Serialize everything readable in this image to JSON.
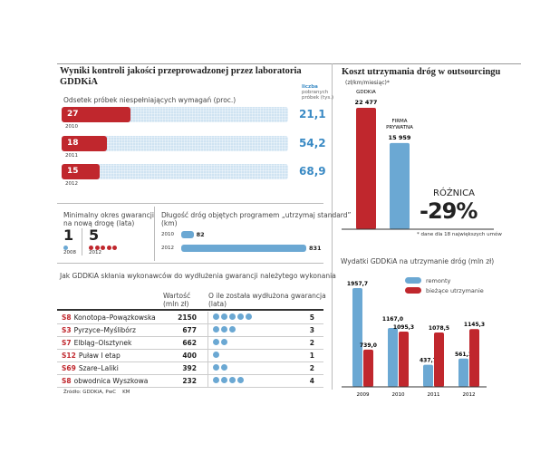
{
  "colors": {
    "red": "#c0272d",
    "blue": "#6ba8d3",
    "light_blue": "#cfe3f2"
  },
  "quality": {
    "title": "Wyniki kontroli jakości przeprowadzonej przez laboratoria GDDKiA",
    "left_label": "Odsetek próbek niespełniających wymagań (proc.)",
    "right_label_1": "liczba",
    "right_label_2": "pobranych",
    "right_label_3": "próbek (tys.)",
    "rows": [
      {
        "year": "2010",
        "percent": "27",
        "samples": "21,1"
      },
      {
        "year": "2011",
        "percent": "18",
        "samples": "54,2"
      },
      {
        "year": "2012",
        "percent": "15",
        "samples": "68,9"
      }
    ]
  },
  "guarantee": {
    "title_1": "Minimalny okres gwarancji",
    "title_2": "na nową drogę (lata)",
    "items": [
      {
        "value": "1",
        "year": "2008",
        "dots": 1
      },
      {
        "value": "5",
        "year": "2012",
        "dots": 5
      }
    ]
  },
  "length": {
    "title_1": "Długość dróg objętych programem „utrzymaj standard”",
    "title_2": "(km)",
    "rows": [
      {
        "year": "2010",
        "value": "82",
        "km": 82
      },
      {
        "year": "2012",
        "value": "831",
        "km": 831
      }
    ]
  },
  "table": {
    "title": "Jak GDDKiA skłania wykonawców do wydłużenia gwarancji należytego wykonania",
    "col_value_1": "Wartość",
    "col_value_2": "(mln zł)",
    "col_ext_1": "O ile została wydłużona gwarancja",
    "col_ext_2": "(lata)",
    "rows": [
      {
        "code": "S8",
        "name": "Konotopa–Powązkowska",
        "value": "2150",
        "years": "5"
      },
      {
        "code": "S3",
        "name": "Pyrzyce–Myślibórz",
        "value": "677",
        "years": "3"
      },
      {
        "code": "S7",
        "name": "Elbląg–Olsztynek",
        "value": "662",
        "years": "2"
      },
      {
        "code": "S12",
        "name": "Puław I etap",
        "value": "400",
        "years": "1"
      },
      {
        "code": "S69",
        "name": "Szare–Laliki",
        "value": "392",
        "years": "2"
      },
      {
        "code": "S8",
        "name": "obwodnica Wyszkowa",
        "value": "232",
        "years": "4"
      }
    ],
    "source": "Źródło: GDDKiA, PwC",
    "author": "KM"
  },
  "chart_data": [
    {
      "type": "bar",
      "title": "Koszt utrzymania dróg w outsourcingu",
      "subtitle": "(zł/km/miesiąc)*",
      "categories": [
        "GDDKiA",
        "FIRMA PRYWATNA"
      ],
      "values": [
        22477,
        15959
      ],
      "labels": [
        "22 477",
        "15 959"
      ],
      "annotation_1": "RÓŻNICA",
      "annotation_2": "-29%",
      "footnote": "* dane dla 18 największych umów"
    },
    {
      "type": "bar",
      "title": "Wydatki GDDKiA na utrzymanie dróg (mln zł)",
      "categories": [
        "2009",
        "2010",
        "2011",
        "2012"
      ],
      "legend": "top-right",
      "series": [
        {
          "name": "remonty",
          "color": "#6ba8d3",
          "values": [
            1957.7,
            1167.0,
            437.7,
            561.1
          ],
          "labels": [
            "1957,7",
            "1167,0",
            "437,7",
            "561,1"
          ]
        },
        {
          "name": "bieżące utrzymanie",
          "color": "#c0272d",
          "values": [
            739.0,
            1095.3,
            1078.5,
            1145.3
          ],
          "labels": [
            "739,0",
            "1095,3",
            "1078,5",
            "1145,3"
          ]
        }
      ]
    }
  ]
}
